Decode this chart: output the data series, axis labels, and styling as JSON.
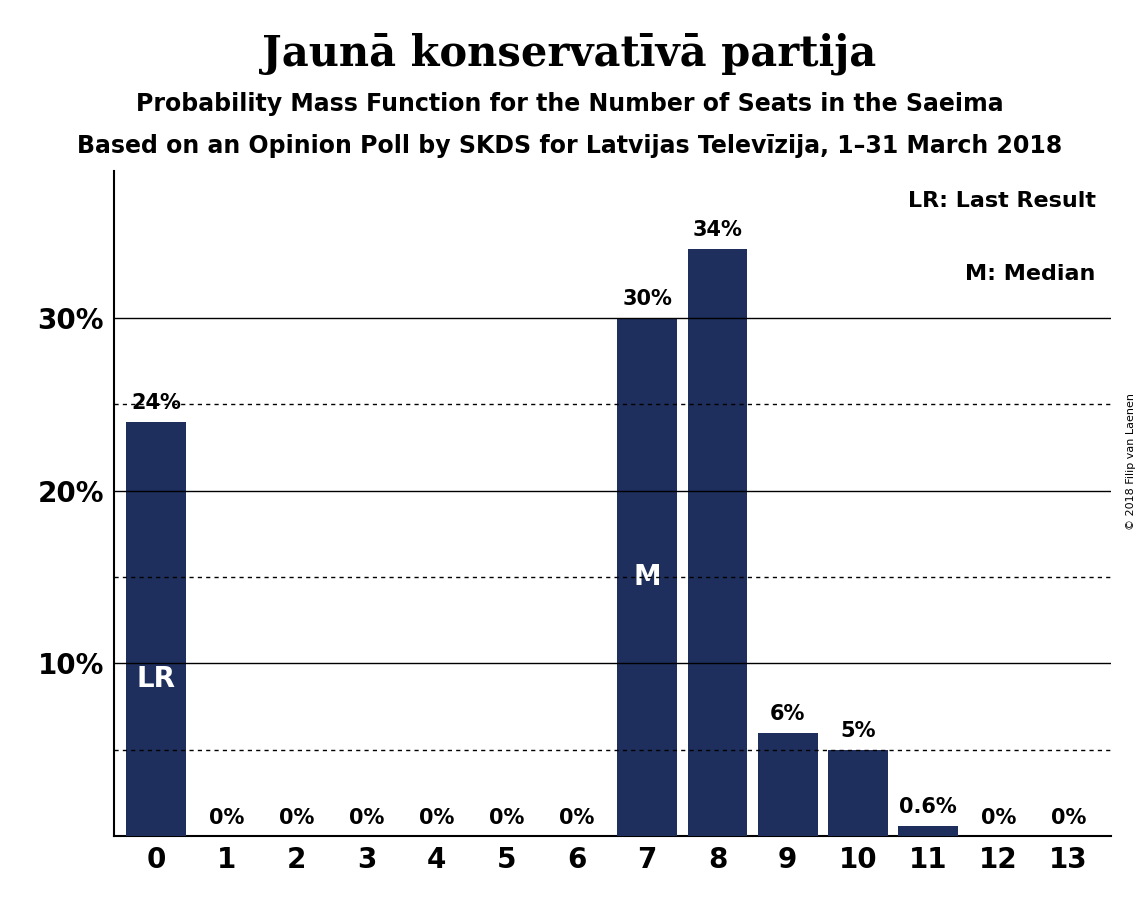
{
  "title": "Jaunā konservatīvā partija",
  "subtitle": "Probability Mass Function for the Number of Seats in the Saeima",
  "subsubtitle": "Based on an Opinion Poll by SKDS for Latvijas Televīzija, 1–31 March 2018",
  "copyright": "© 2018 Filip van Laenen",
  "categories": [
    0,
    1,
    2,
    3,
    4,
    5,
    6,
    7,
    8,
    9,
    10,
    11,
    12,
    13
  ],
  "values": [
    0.24,
    0.0,
    0.0,
    0.0,
    0.0,
    0.0,
    0.0,
    0.3,
    0.34,
    0.06,
    0.05,
    0.006,
    0.0,
    0.0
  ],
  "bar_color": "#1e2f5e",
  "bar_labels": [
    "24%",
    "0%",
    "0%",
    "0%",
    "0%",
    "0%",
    "0%",
    "30%",
    "34%",
    "6%",
    "5%",
    "0.6%",
    "0%",
    "0%"
  ],
  "LR_index": 0,
  "M_index": 7,
  "yticks": [
    0.0,
    0.1,
    0.2,
    0.3
  ],
  "ytick_labels": [
    "",
    "10%",
    "20%",
    "30%"
  ],
  "ylim": [
    0,
    0.385
  ],
  "solid_lines": [
    0.1,
    0.2,
    0.3
  ],
  "dotted_lines": [
    0.05,
    0.15,
    0.25
  ],
  "legend_LR": "LR: Last Result",
  "legend_M": "M: Median",
  "background_color": "#ffffff",
  "title_fontsize": 30,
  "subtitle_fontsize": 17,
  "subsubtitle_fontsize": 17,
  "bar_label_fontsize": 15,
  "inside_label_fontsize": 20,
  "ytick_fontsize": 20,
  "xtick_fontsize": 20,
  "legend_fontsize": 16
}
